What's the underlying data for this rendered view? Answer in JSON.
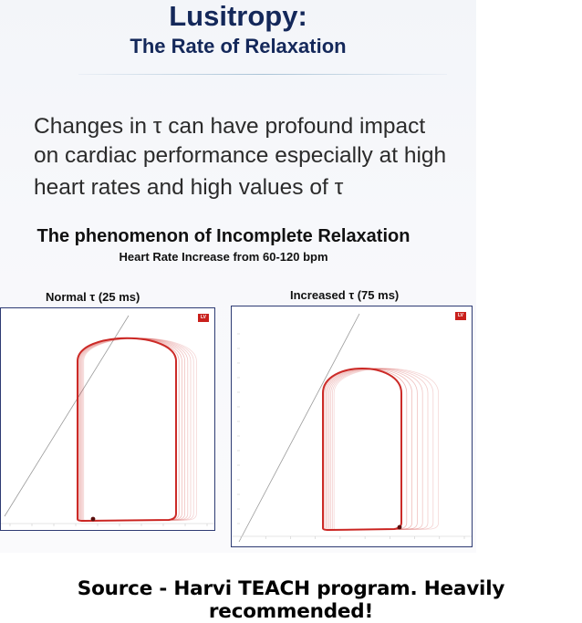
{
  "slide": {
    "title": "Lusitropy:",
    "subtitle": "The Rate of Relaxation",
    "body_lines": [
      "Changes in τ can have profound impact",
      "on cardiac performance especially at high",
      "heart rates and high values of τ"
    ],
    "figure_title": "The phenomenon of Incomplete Relaxation",
    "figure_subtitle": "Heart Rate Increase from 60-120 bpm",
    "panels": [
      {
        "label": "Normal τ (25 ms)",
        "badge": "LV"
      },
      {
        "label": "Increased τ (75 ms)",
        "badge": "LV"
      }
    ]
  },
  "caption": "Source - Harvi TEACH program. Heavily recommended!",
  "colors": {
    "title": "#14285a",
    "loop": "#c9201c",
    "panel_border": "#2e3b73"
  }
}
